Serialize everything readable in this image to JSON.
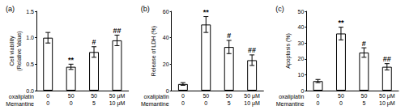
{
  "chart_data": [
    {
      "type": "bar",
      "title": "(a)",
      "ylabel": "Cell viability\n(Relative Value)",
      "category_rows": [
        "oxaliplatin",
        "Memantine"
      ],
      "categories": [
        [
          "0",
          "0"
        ],
        [
          "50",
          "0"
        ],
        [
          "50",
          "5"
        ],
        [
          "50 μM",
          "10 μM"
        ]
      ],
      "values": [
        1.0,
        0.45,
        0.73,
        0.95
      ],
      "errors": [
        0.1,
        0.05,
        0.1,
        0.1
      ],
      "annotations": [
        null,
        "**",
        "#",
        "##"
      ],
      "color": "#ffffff",
      "ylim": [
        0,
        1.5
      ],
      "yticks": [
        {
          "value": 0,
          "label": "0.0"
        },
        {
          "value": 0.5,
          "label": "0.5"
        },
        {
          "value": 1,
          "label": "1.0"
        },
        {
          "value": 1.5,
          "label": "1.5"
        }
      ],
      "grid": false
    },
    {
      "type": "bar",
      "title": "(b)",
      "ylabel": "Release of LDH (%)",
      "category_rows": [
        "oxaliplatin",
        "Memantine"
      ],
      "categories": [
        [
          "0",
          "0"
        ],
        [
          "50",
          "0"
        ],
        [
          "50",
          "5"
        ],
        [
          "50 μM",
          "10 μM"
        ]
      ],
      "values": [
        5,
        50,
        33,
        23
      ],
      "errors": [
        1,
        6,
        5,
        4
      ],
      "annotations": [
        null,
        "**",
        "#",
        "##"
      ],
      "color": "#ffffff",
      "ylim": [
        0,
        60
      ],
      "yticks": [
        0,
        20,
        40,
        60
      ],
      "grid": false
    },
    {
      "type": "bar",
      "title": "(c)",
      "ylabel": "Apoptosis (%)",
      "category_rows": [
        "oxaliplatin",
        "Memantine"
      ],
      "categories": [
        [
          "0",
          "0"
        ],
        [
          "50",
          "0"
        ],
        [
          "50",
          "5"
        ],
        [
          "50 μM",
          "10 μM"
        ]
      ],
      "values": [
        6,
        36,
        24,
        15
      ],
      "errors": [
        1,
        4,
        3,
        2
      ],
      "annotations": [
        null,
        "**",
        "#",
        "##"
      ],
      "color": "#ffffff",
      "ylim": [
        0,
        50
      ],
      "yticks": [
        0,
        10,
        20,
        30,
        40,
        50
      ],
      "grid": false
    }
  ]
}
